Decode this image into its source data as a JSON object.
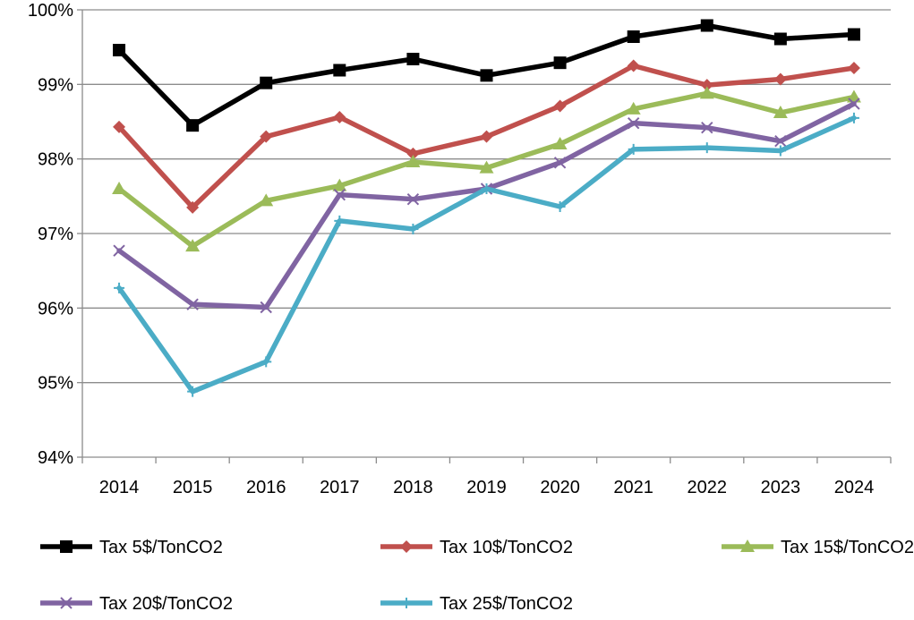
{
  "chart_data": {
    "type": "line",
    "title": "",
    "xlabel": "",
    "ylabel": "",
    "categories": [
      "2014",
      "2015",
      "2016",
      "2017",
      "2018",
      "2019",
      "2020",
      "2021",
      "2022",
      "2023",
      "2024"
    ],
    "ylim": [
      94,
      100
    ],
    "yticks": [
      94,
      95,
      96,
      97,
      98,
      99,
      100
    ],
    "ytick_labels": [
      "94%",
      "95%",
      "96%",
      "97%",
      "98%",
      "99%",
      "100%"
    ],
    "grid": "horizontal",
    "legend_position": "bottom",
    "series": [
      {
        "name": "Tax 5$/TonCO2",
        "color": "#000000",
        "marker": "square",
        "values": [
          99.46,
          98.45,
          99.02,
          99.19,
          99.34,
          99.12,
          99.29,
          99.64,
          99.79,
          99.61,
          99.67
        ]
      },
      {
        "name": "Tax 10$/TonCO2",
        "color": "#c0504d",
        "marker": "diamond",
        "values": [
          98.43,
          97.35,
          98.3,
          98.56,
          98.07,
          98.3,
          98.71,
          99.25,
          98.99,
          99.07,
          99.22
        ]
      },
      {
        "name": "Tax 15$/TonCO2",
        "color": "#9bbb59",
        "marker": "triangle",
        "values": [
          97.6,
          96.83,
          97.44,
          97.64,
          97.96,
          97.88,
          98.2,
          98.67,
          98.88,
          98.62,
          98.83
        ]
      },
      {
        "name": "Tax 20$/TonCO2",
        "color": "#8064a2",
        "marker": "x",
        "values": [
          96.77,
          96.05,
          96.01,
          97.52,
          97.46,
          97.6,
          97.95,
          98.48,
          98.42,
          98.24,
          98.74
        ]
      },
      {
        "name": "Tax 25$/TonCO2",
        "color": "#4bacc6",
        "marker": "plus",
        "values": [
          96.27,
          94.88,
          95.28,
          97.17,
          97.06,
          97.6,
          97.36,
          98.13,
          98.15,
          98.11,
          98.55
        ]
      }
    ]
  }
}
